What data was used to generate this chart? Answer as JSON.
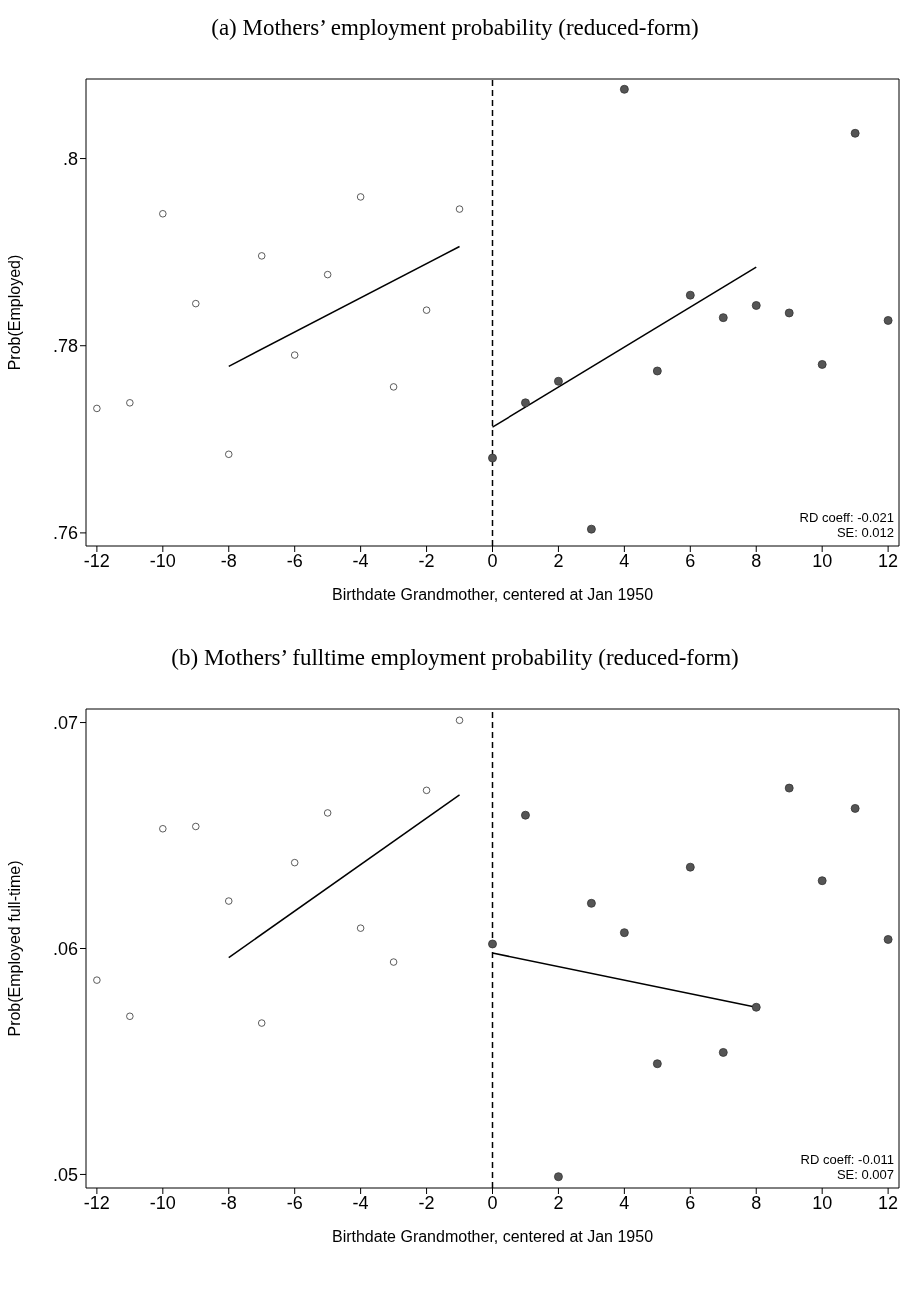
{
  "chart_data": [
    {
      "type": "scatter",
      "title": "(a) Mothers’ employment probability (reduced-form)",
      "xlabel": "Birthdate Grandmother, centered at Jan 1950",
      "ylabel": "Prob(Employed)",
      "xlim": [
        -12.33,
        12.33
      ],
      "ylim": [
        0.7586,
        0.8085
      ],
      "xticks": [
        -12,
        -10,
        -8,
        -6,
        -4,
        -2,
        0,
        2,
        4,
        6,
        8,
        10,
        12
      ],
      "yticks": [
        {
          "value": 0.76,
          "label": ".76"
        },
        {
          "value": 0.78,
          "label": ".78"
        },
        {
          "value": 0.8,
          "label": ".8"
        }
      ],
      "marker": "circle",
      "ref_lines": [
        {
          "axis": "x",
          "value": 0,
          "line_style": "dashed",
          "color": "#000000"
        }
      ],
      "annotations": [
        "RD coeff: -0.021",
        "SE: 0.012"
      ],
      "series": [
        {
          "color": "#ffffff",
          "x": [
            -12,
            -11,
            -10,
            -9,
            -8,
            -7,
            -6,
            -5,
            -4,
            -3,
            -2,
            -1
          ],
          "values": [
            0.7733,
            0.7739,
            0.7941,
            0.7845,
            0.7684,
            0.7896,
            0.779,
            0.7876,
            0.7959,
            0.7756,
            0.7838,
            0.7946
          ]
        },
        {
          "color": "#555555",
          "x": [
            0,
            1,
            2,
            3,
            4,
            5,
            6,
            7,
            8,
            9,
            10,
            11,
            12
          ],
          "values": [
            0.768,
            0.7739,
            0.7762,
            0.7604,
            0.8074,
            0.7773,
            0.7854,
            0.783,
            0.7843,
            0.7835,
            0.778,
            0.8027,
            0.7827
          ]
        },
        {
          "type": "line",
          "marker": "none",
          "color": "#000000",
          "x": [
            -8,
            -1
          ],
          "values": [
            0.7778,
            0.7906
          ]
        },
        {
          "type": "line",
          "marker": "none",
          "color": "#000000",
          "x": [
            0,
            8
          ],
          "values": [
            0.7713,
            0.7884
          ]
        }
      ]
    },
    {
      "type": "scatter",
      "title": "(b) Mothers’ fulltime employment probability (reduced-form)",
      "xlabel": "Birthdate Grandmother, centered at Jan 1950",
      "ylabel": "Prob(Employed full-time)",
      "xlim": [
        -12.33,
        12.33
      ],
      "ylim": [
        0.0494,
        0.0706
      ],
      "xticks": [
        -12,
        -10,
        -8,
        -6,
        -4,
        -2,
        0,
        2,
        4,
        6,
        8,
        10,
        12
      ],
      "yticks": [
        {
          "value": 0.05,
          "label": ".05"
        },
        {
          "value": 0.06,
          "label": ".06"
        },
        {
          "value": 0.07,
          "label": ".07"
        }
      ],
      "marker": "circle",
      "ref_lines": [
        {
          "axis": "x",
          "value": 0,
          "line_style": "dashed",
          "color": "#000000"
        }
      ],
      "annotations": [
        "RD coeff: -0.011",
        "SE: 0.007"
      ],
      "series": [
        {
          "color": "#ffffff",
          "x": [
            -12,
            -11,
            -10,
            -9,
            -8,
            -7,
            -6,
            -5,
            -4,
            -3,
            -2,
            -1
          ],
          "values": [
            0.0586,
            0.057,
            0.0653,
            0.0654,
            0.0621,
            0.0567,
            0.0638,
            0.066,
            0.0609,
            0.0594,
            0.067,
            0.0701
          ]
        },
        {
          "color": "#555555",
          "x": [
            0,
            1,
            2,
            3,
            4,
            5,
            6,
            7,
            8,
            9,
            10,
            11,
            12
          ],
          "values": [
            0.0602,
            0.0659,
            0.0499,
            0.062,
            0.0607,
            0.0549,
            0.0636,
            0.0554,
            0.0574,
            0.0671,
            0.063,
            0.0662,
            0.0604
          ]
        },
        {
          "type": "line",
          "marker": "none",
          "color": "#000000",
          "x": [
            -8,
            -1
          ],
          "values": [
            0.0596,
            0.0668
          ]
        },
        {
          "type": "line",
          "marker": "none",
          "color": "#000000",
          "x": [
            0,
            8
          ],
          "values": [
            0.0598,
            0.0574
          ]
        }
      ]
    }
  ]
}
